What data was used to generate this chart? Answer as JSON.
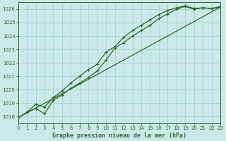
{
  "title": "Graphe pression niveau de la mer (hPa)",
  "bg_color": "#cce8e8",
  "line_color": "#2d6a2d",
  "grid_color": "#9fcfcf",
  "xmin": 0,
  "xmax": 23,
  "ymin": 1017.5,
  "ymax": 1026.5,
  "yticks": [
    1018,
    1019,
    1020,
    1021,
    1022,
    1023,
    1024,
    1025,
    1026
  ],
  "xticks": [
    0,
    1,
    2,
    3,
    4,
    5,
    6,
    7,
    8,
    9,
    10,
    11,
    12,
    13,
    14,
    15,
    16,
    17,
    18,
    19,
    20,
    21,
    22,
    23
  ],
  "line1_x": [
    0,
    1,
    2,
    3,
    4,
    5,
    6,
    7,
    8,
    9,
    10,
    11,
    12,
    13,
    14,
    15,
    16,
    17,
    18,
    19,
    20,
    21,
    22,
    23
  ],
  "line1_y": [
    1017.9,
    1018.3,
    1018.6,
    1018.2,
    1019.2,
    1019.6,
    1020.1,
    1020.5,
    1020.9,
    1021.4,
    1022.2,
    1023.1,
    1023.5,
    1024.0,
    1024.4,
    1024.8,
    1025.3,
    1025.65,
    1026.0,
    1026.2,
    1026.0,
    1026.1,
    1026.05,
    1026.15
  ],
  "line2_x": [
    0,
    1,
    2,
    3,
    4,
    5,
    6,
    7,
    8,
    9,
    10,
    11,
    12,
    13,
    14,
    15,
    16,
    17,
    18,
    19,
    20,
    21,
    22,
    23
  ],
  "line2_y": [
    1017.9,
    1018.3,
    1018.9,
    1018.7,
    1019.4,
    1019.9,
    1020.5,
    1021.0,
    1021.5,
    1021.9,
    1022.8,
    1023.2,
    1023.9,
    1024.4,
    1024.8,
    1025.2,
    1025.6,
    1025.9,
    1026.1,
    1026.25,
    1026.05,
    1026.1,
    1026.05,
    1026.2
  ],
  "line3_x": [
    0,
    23
  ],
  "line3_y": [
    1017.9,
    1026.15
  ]
}
